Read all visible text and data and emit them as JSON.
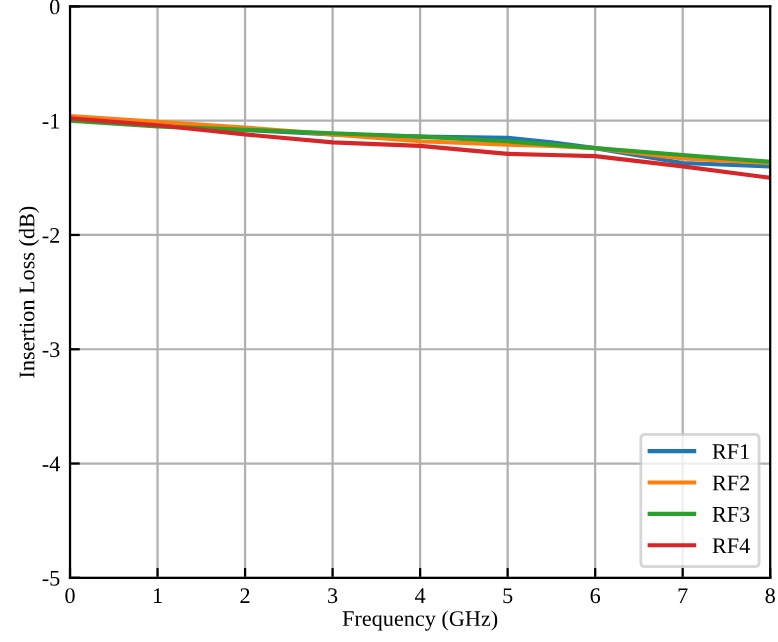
{
  "chart_data": {
    "type": "line",
    "xlabel": "Frequency (GHz)",
    "ylabel": "Insertion Loss (dB)",
    "x": [
      0,
      1,
      2,
      3,
      4,
      5,
      5.5,
      6,
      7,
      8
    ],
    "series": [
      {
        "name": "RF1",
        "color": "#1f77b4",
        "values": [
          -0.98,
          -1.02,
          -1.08,
          -1.12,
          -1.14,
          -1.15,
          -1.19,
          -1.24,
          -1.37,
          -1.4
        ]
      },
      {
        "name": "RF2",
        "color": "#ff7f0e",
        "values": [
          -0.96,
          -1.01,
          -1.06,
          -1.12,
          -1.18,
          -1.21,
          -1.22,
          -1.24,
          -1.33,
          -1.37
        ]
      },
      {
        "name": "RF3",
        "color": "#2ca02c",
        "values": [
          -1.0,
          -1.05,
          -1.08,
          -1.11,
          -1.14,
          -1.18,
          -1.21,
          -1.24,
          -1.3,
          -1.36
        ]
      },
      {
        "name": "RF4",
        "color": "#d62728",
        "values": [
          -0.98,
          -1.04,
          -1.12,
          -1.19,
          -1.22,
          -1.29,
          -1.3,
          -1.31,
          -1.4,
          -1.5
        ]
      }
    ],
    "xlim": [
      0,
      8
    ],
    "xticks": [
      0,
      1,
      2,
      3,
      4,
      5,
      6,
      7,
      8
    ],
    "ylim": [
      -5,
      0
    ],
    "yticks": [
      -5,
      -4,
      -3,
      -2,
      -1,
      0
    ],
    "grid": true,
    "legend": "bottom right"
  }
}
